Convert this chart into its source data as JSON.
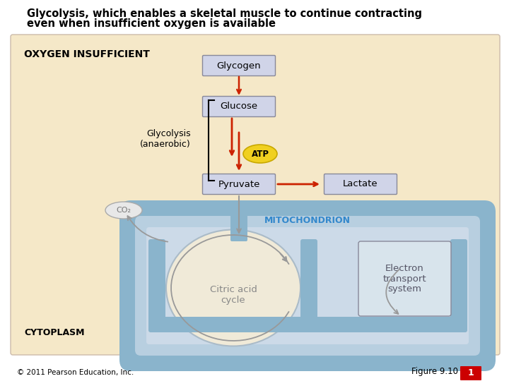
{
  "title_line1": "Glycolysis, which enables a skeletal muscle to continue contracting",
  "title_line2": "even when insufficient oxygen is available",
  "bg_color": "#f5e8c8",
  "box_fill": "#d0d4e8",
  "box_edge": "#888899",
  "mito_outer_color": "#8ab4cc",
  "mito_inner_color": "#b8cfe0",
  "mito_inner2_color": "#ccdae8",
  "inner_oval_fill": "#f0ead8",
  "inner_oval_edge": "#aabbc8",
  "ets_box_fill": "#d8e4ec",
  "ets_box_edge": "#888899",
  "atp_fill": "#f0d020",
  "atp_edge": "#c8a800",
  "arrow_red": "#cc2200",
  "arrow_gray": "#999999",
  "text_blue": "#3388cc",
  "co2_fill": "#e8e8e8",
  "co2_edge": "#aaaaaa",
  "copyright": "© 2011 Pearson Education, Inc.",
  "figure_label": "Figure 9.10",
  "figure_num": "1",
  "labels": {
    "oxygen_insufficient": "OXYGEN INSUFFICIENT",
    "glycogen": "Glycogen",
    "glucose": "Glucose",
    "glycolysis": "Glycolysis\n(anaerobic)",
    "atp": "ATP",
    "pyruvate": "Pyruvate",
    "lactate": "Lactate",
    "co2": "CO₂",
    "mitochondrion": "MITOCHONDRION",
    "citric_acid": "Citric acid\ncycle",
    "electron": "Electron\ntransport\nsystem",
    "cytoplasm": "CYTOPLASM"
  }
}
